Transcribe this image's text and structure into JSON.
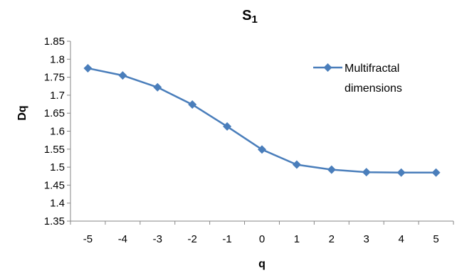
{
  "chart_data": {
    "type": "line",
    "title_main": "S",
    "title_sub": "1",
    "xlabel": "q",
    "ylabel": "Dq",
    "x": [
      -5,
      -4,
      -3,
      -2,
      -1,
      0,
      1,
      2,
      3,
      4,
      5
    ],
    "xticks": [
      "-5",
      "-4",
      "-3",
      "-2",
      "-1",
      "0",
      "1",
      "2",
      "3",
      "4",
      "5"
    ],
    "ylim": [
      1.35,
      1.85
    ],
    "yticks": [
      "1.35",
      "1.4",
      "1.45",
      "1.5",
      "1.55",
      "1.6",
      "1.65",
      "1.7",
      "1.75",
      "1.8",
      "1.85"
    ],
    "grid": false,
    "legend_position": "top-right",
    "series": [
      {
        "name_line1": "Multifractal",
        "name_line2": "dimensions",
        "color": "#4a7ebb",
        "marker": "diamond",
        "values": [
          1.775,
          1.755,
          1.722,
          1.674,
          1.613,
          1.549,
          1.507,
          1.493,
          1.486,
          1.485,
          1.485
        ]
      }
    ]
  }
}
